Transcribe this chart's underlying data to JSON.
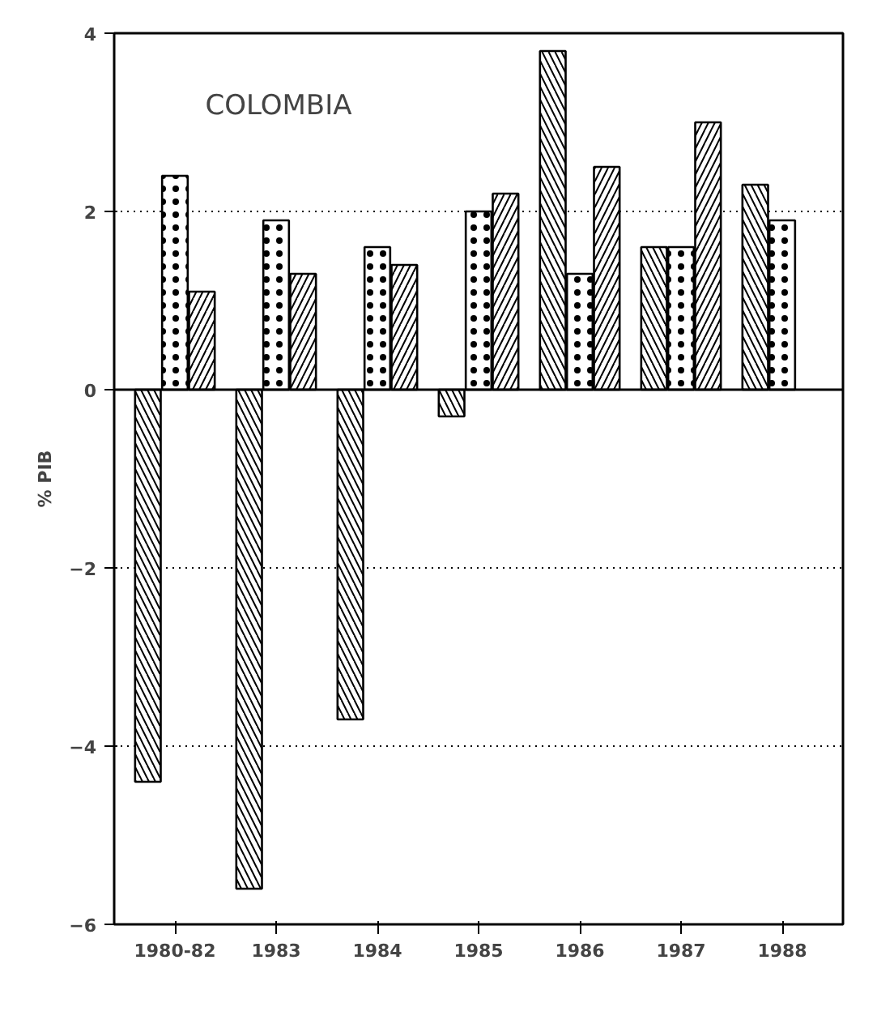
{
  "chart_data": {
    "type": "bar",
    "title": "COLOMBIA",
    "ylabel": "% PIB",
    "categories": [
      "1980-82",
      "1983",
      "1984",
      "1985",
      "1986",
      "1987",
      "1988"
    ],
    "series": [
      {
        "color": "#ffffff",
        "values": [
          -4.4,
          -5.6,
          -3.7,
          -0.3,
          3.8,
          1.6,
          2.3
        ]
      },
      {
        "color": "#ffffff",
        "values": [
          2.4,
          1.9,
          1.6,
          2.0,
          1.3,
          1.6,
          1.9
        ]
      },
      {
        "color": "#ffffff",
        "values": [
          1.1,
          1.3,
          1.4,
          2.2,
          2.5,
          3.0,
          null
        ]
      }
    ],
    "ylim": [
      -6,
      4
    ],
    "yticks": [
      -6,
      -4,
      -2,
      0,
      2,
      4
    ],
    "grid": "y"
  }
}
